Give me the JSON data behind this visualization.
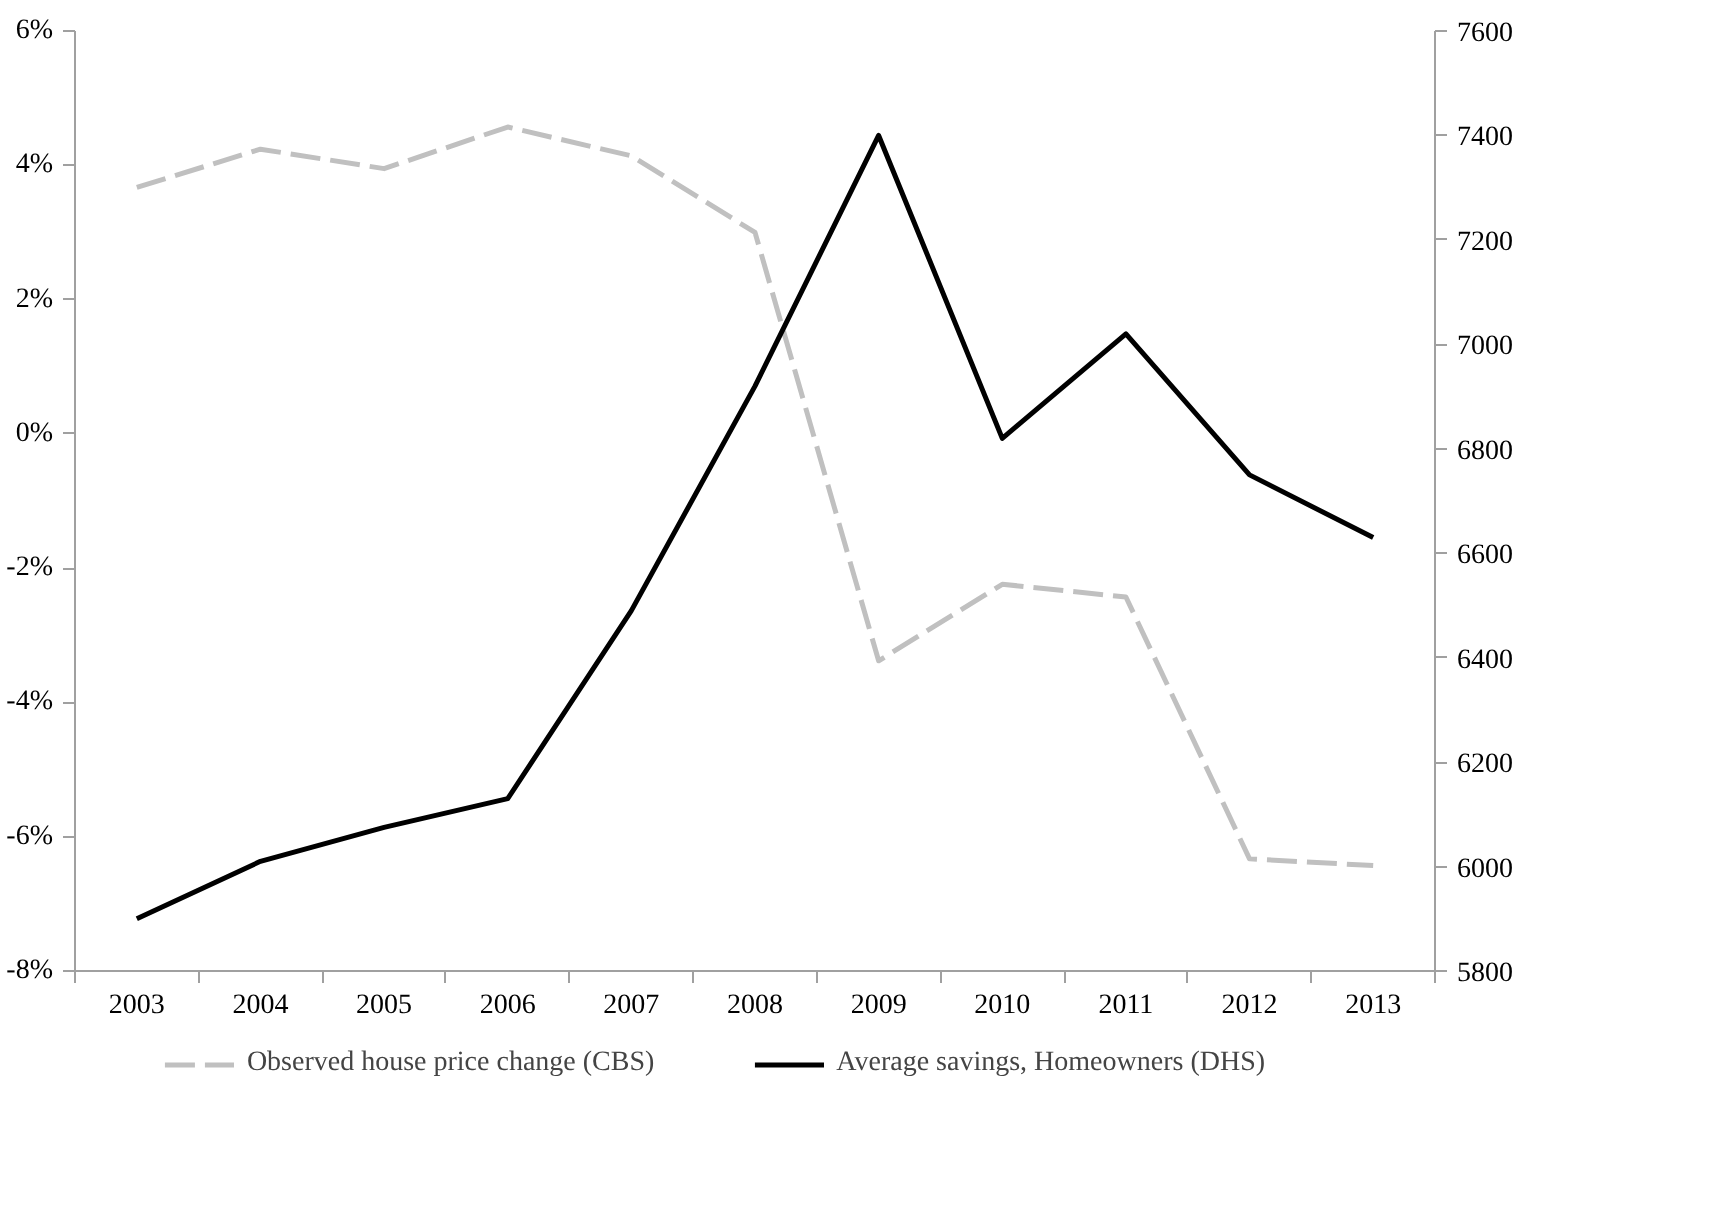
{
  "chart_data": {
    "type": "line",
    "categories": [
      "2003",
      "2004",
      "2005",
      "2006",
      "2007",
      "2008",
      "2009",
      "2010",
      "2011",
      "2012",
      "2013"
    ],
    "series": [
      {
        "name": "Observed house price change (CBS)",
        "color": "#c0c0c0",
        "line_style": "dashed",
        "values": [
          3.67,
          4.24,
          3.95,
          4.57,
          4.14,
          3.0,
          -3.38,
          -2.24,
          -2.43,
          -6.33,
          -6.43
        ]
      },
      {
        "name": "Average savings, Homeowners (DHS)",
        "color": "#000000",
        "line_style": "solid",
        "axis": "y2",
        "values": [
          5900,
          6010,
          6075,
          6130,
          6490,
          6920,
          7400,
          6820,
          7020,
          6750,
          6630
        ]
      }
    ],
    "ylim": [
      -8,
      6
    ],
    "yticks": [
      {
        "value": -8,
        "label": "-8%"
      },
      {
        "value": -6,
        "label": "-6%"
      },
      {
        "value": -4,
        "label": "-4%"
      },
      {
        "value": -2,
        "label": "-2%"
      },
      {
        "value": 0,
        "label": "0%"
      },
      {
        "value": 2,
        "label": "2%"
      },
      {
        "value": 4,
        "label": "4%"
      },
      {
        "value": 6,
        "label": "6%"
      }
    ],
    "y2lim": [
      5800,
      7600
    ],
    "y2ticks": [
      5800,
      6000,
      6200,
      6400,
      6600,
      6800,
      7000,
      7200,
      7400,
      7600
    ],
    "grid": false,
    "legend": "bottom",
    "marker": "none"
  }
}
